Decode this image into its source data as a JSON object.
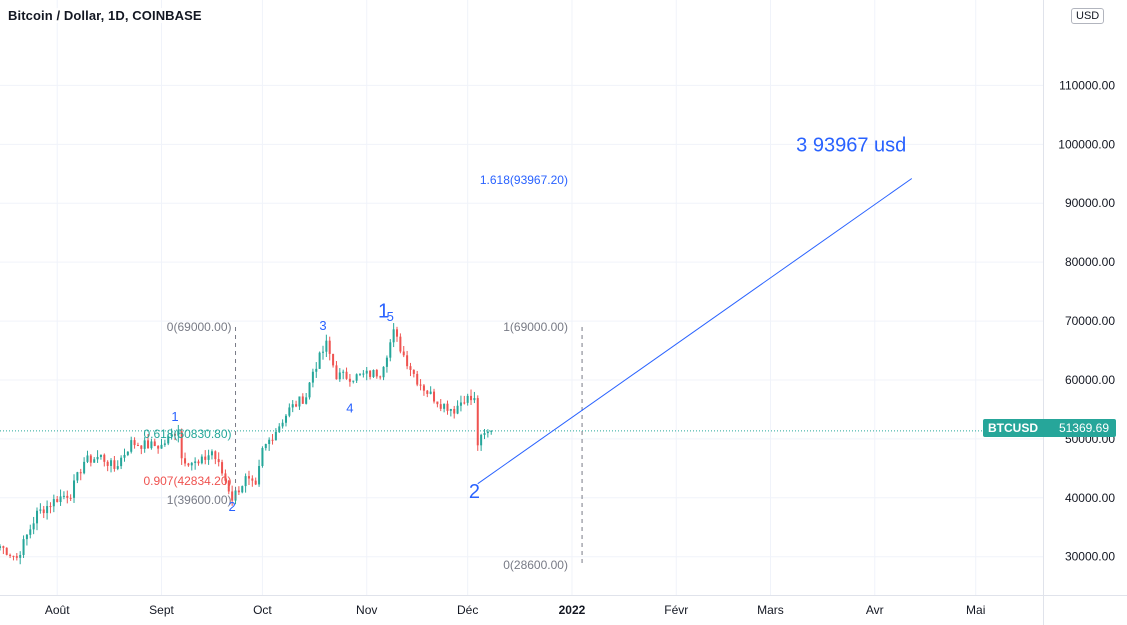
{
  "header": {
    "title": "Bitcoin / Dollar, 1D, COINBASE",
    "currency": "USD"
  },
  "price_badge": {
    "symbol": "BTCUSD",
    "value": "51369.69"
  },
  "colors": {
    "up": "#26a69a",
    "down": "#ef5350",
    "annotation_blue": "#2962ff",
    "fib_gray": "#787b86",
    "fib_teal": "#26a69a",
    "fib_red": "#ef5350",
    "grid": "#f0f3fa"
  },
  "chart_data": {
    "type": "candlestick",
    "symbol": "BTCUSD",
    "interval": "1D",
    "exchange": "COINBASE",
    "ylim": [
      23500,
      124500
    ],
    "y_ticks": [
      30000,
      40000,
      50000,
      60000,
      70000,
      80000,
      90000,
      100000,
      110000
    ],
    "y_tick_labels": [
      "30000.00",
      "40000.00",
      "50000.00",
      "60000.00",
      "70000.00",
      "80000.00",
      "90000.00",
      "100000.00",
      "110000.00"
    ],
    "x_ticks": [
      {
        "date": "2021-08-01",
        "label": "Août"
      },
      {
        "date": "2021-09-01",
        "label": "Sept"
      },
      {
        "date": "2021-10-01",
        "label": "Oct"
      },
      {
        "date": "2021-11-01",
        "label": "Nov"
      },
      {
        "date": "2021-12-01",
        "label": "Déc"
      },
      {
        "date": "2022-01-01",
        "label": "2022"
      },
      {
        "date": "2022-02-01",
        "label": "Févr"
      },
      {
        "date": "2022-03-01",
        "label": "Mars"
      },
      {
        "date": "2022-04-01",
        "label": "Avr"
      },
      {
        "date": "2022-05-01",
        "label": "Mai"
      }
    ],
    "xlim": [
      "2021-07-15",
      "2022-05-21"
    ],
    "last_price": 51369.69,
    "close_path": [
      [
        "2021-07-15",
        31800
      ],
      [
        "2021-07-20",
        29800
      ],
      [
        "2021-07-26",
        37300
      ],
      [
        "2021-08-01",
        39900
      ],
      [
        "2021-08-05",
        40800
      ],
      [
        "2021-08-09",
        46200
      ],
      [
        "2021-08-14",
        47000
      ],
      [
        "2021-08-18",
        45000
      ],
      [
        "2021-08-23",
        49300
      ],
      [
        "2021-08-28",
        48900
      ],
      [
        "2021-09-01",
        48800
      ],
      [
        "2021-09-06",
        51800
      ],
      [
        "2021-09-07",
        46800
      ],
      [
        "2021-09-12",
        45600
      ],
      [
        "2021-09-16",
        47900
      ],
      [
        "2021-09-20",
        43000
      ],
      [
        "2021-09-22",
        40000
      ],
      [
        "2021-09-26",
        43200
      ],
      [
        "2021-09-29",
        41500
      ],
      [
        "2021-10-01",
        48000
      ],
      [
        "2021-10-05",
        51500
      ],
      [
        "2021-10-09",
        55000
      ],
      [
        "2021-10-14",
        57300
      ],
      [
        "2021-10-16",
        61500
      ],
      [
        "2021-10-20",
        66000
      ],
      [
        "2021-10-23",
        60800
      ],
      [
        "2021-10-28",
        60500
      ],
      [
        "2021-11-02",
        61000
      ],
      [
        "2021-11-05",
        61300
      ],
      [
        "2021-11-09",
        68000
      ],
      [
        "2021-11-12",
        64200
      ],
      [
        "2021-11-16",
        60000
      ],
      [
        "2021-11-19",
        58000
      ],
      [
        "2021-11-23",
        56000
      ],
      [
        "2021-11-27",
        55000
      ],
      [
        "2021-11-30",
        57000
      ],
      [
        "2021-12-03",
        56500
      ],
      [
        "2021-12-04",
        49200
      ],
      [
        "2021-12-06",
        50600
      ],
      [
        "2021-12-08",
        51370
      ]
    ],
    "annotations": [
      {
        "text": "1",
        "date": "2021-09-05",
        "price": 53000,
        "color": "annotation_blue",
        "size": 13
      },
      {
        "text": "2",
        "date": "2021-09-22",
        "price": 37800,
        "color": "annotation_blue",
        "size": 13
      },
      {
        "text": "3",
        "date": "2021-10-19",
        "price": 68500,
        "color": "annotation_blue",
        "size": 13
      },
      {
        "text": "4",
        "date": "2021-10-27",
        "price": 54500,
        "color": "annotation_blue",
        "size": 13
      },
      {
        "text": "5",
        "date": "2021-11-08",
        "price": 70000,
        "color": "annotation_blue",
        "size": 13
      },
      {
        "text": "1",
        "date": "2021-11-06",
        "price": 70600,
        "color": "annotation_blue",
        "size": 20
      },
      {
        "text": "2",
        "date": "2021-12-03",
        "price": 40000,
        "color": "annotation_blue",
        "size": 20
      },
      {
        "text": "3 93967 usd",
        "date": "2022-03-25",
        "price": 98800,
        "color": "annotation_blue",
        "size": 20
      }
    ],
    "fib_levels": [
      {
        "text": "0(69000.00)",
        "date": "2021-09-23",
        "price": 69000,
        "color": "fib_gray",
        "align": "end"
      },
      {
        "text": "0.618(50830.80)",
        "date": "2021-09-23",
        "price": 50830.8,
        "color": "fib_teal",
        "align": "end"
      },
      {
        "text": "0.907(42834.20)",
        "date": "2021-09-23",
        "price": 42834.2,
        "color": "fib_red",
        "align": "end"
      },
      {
        "text": "1(39600.00)",
        "date": "2021-09-23",
        "price": 39600,
        "color": "fib_gray",
        "align": "end"
      },
      {
        "text": "1(69000.00)",
        "date": "2022-01-01",
        "price": 69000,
        "color": "fib_gray",
        "align": "end"
      },
      {
        "text": "1.618(93967.20)",
        "date": "2022-01-01",
        "price": 93967.2,
        "color": "annotation_blue",
        "align": "end"
      },
      {
        "text": "0(28600.00)",
        "date": "2022-01-01",
        "price": 28600,
        "color": "fib_gray",
        "align": "end"
      }
    ],
    "dashed_verticals": [
      {
        "date": "2021-09-23",
        "from": 39600,
        "to": 69000
      },
      {
        "date": "2022-01-04",
        "from": 28600,
        "to": 69000
      }
    ],
    "trend_line": {
      "from": [
        "2021-12-04",
        42400
      ],
      "to": [
        "2022-04-12",
        94200
      ],
      "color": "annotation_blue"
    }
  }
}
